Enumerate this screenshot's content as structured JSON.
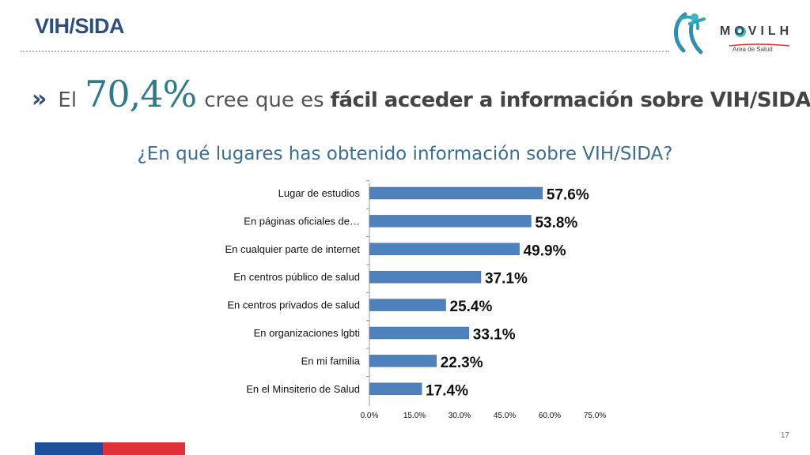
{
  "header": {
    "title": "VIH/SIDA",
    "logo_text": "MOVILH",
    "logo_sub": "Area de Salud"
  },
  "headline": {
    "chevron": "»",
    "pre": "El",
    "big": "70,4%",
    "mid": "cree que es",
    "bold": "fácil acceder a información sobre VIH/SIDA"
  },
  "question": "¿En qué lugares has obtenido información sobre VIH/SIDA?",
  "page_number": "17",
  "colors": {
    "bar": "#4f81bd",
    "title": "#2e4f7d",
    "question": "#3b6f8f",
    "big_number": "#2f7a8a"
  },
  "chart_data": {
    "type": "bar",
    "orientation": "horizontal",
    "categories": [
      "Lugar de estudios",
      "En páginas oficiales de…",
      "En cualquier parte de internet",
      "En centros público de salud",
      "En centros privados de salud",
      "En organizaciones lgbti",
      "En mi familia",
      "En el Minsiterio de Salud"
    ],
    "values": [
      57.6,
      53.8,
      49.9,
      37.1,
      25.4,
      33.1,
      22.3,
      17.4
    ],
    "value_labels": [
      "57.6%",
      "53.8%",
      "49.9%",
      "37.1%",
      "25.4%",
      "33.1%",
      "22.3%",
      "17.4%"
    ],
    "xlim": [
      0,
      75
    ],
    "xticks": [
      0,
      15,
      30,
      45,
      60,
      75
    ],
    "xtick_labels": [
      "0.0%",
      "15.0%",
      "30.0%",
      "45.0%",
      "60.0%",
      "75.0%"
    ],
    "grid": false
  }
}
